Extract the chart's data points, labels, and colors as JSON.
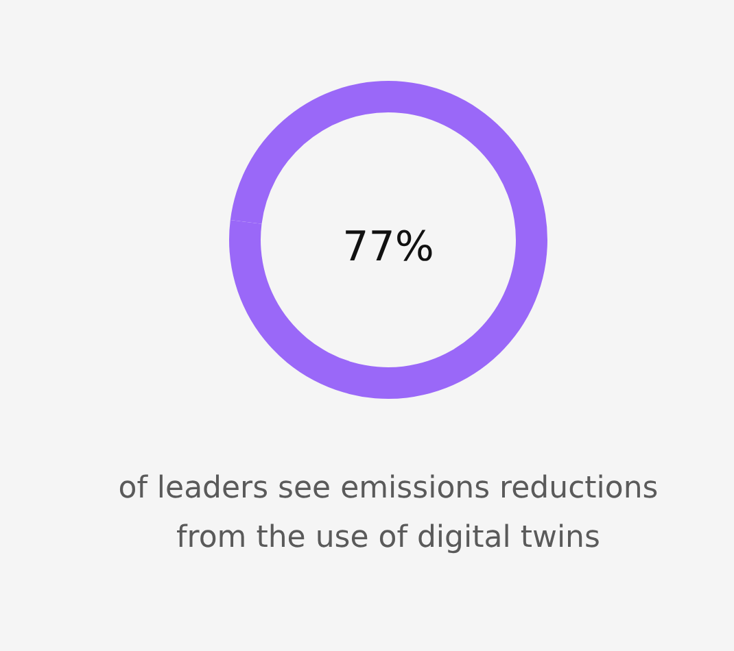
{
  "chart_data": {
    "type": "donut",
    "categories": [
      null,
      null
    ],
    "values": [
      77,
      23
    ],
    "colors": [
      "#9a68f8",
      "#9a68f8"
    ],
    "annotations": [
      "77%",
      "of leaders see emissions reductions from the use of digital twins"
    ]
  }
}
